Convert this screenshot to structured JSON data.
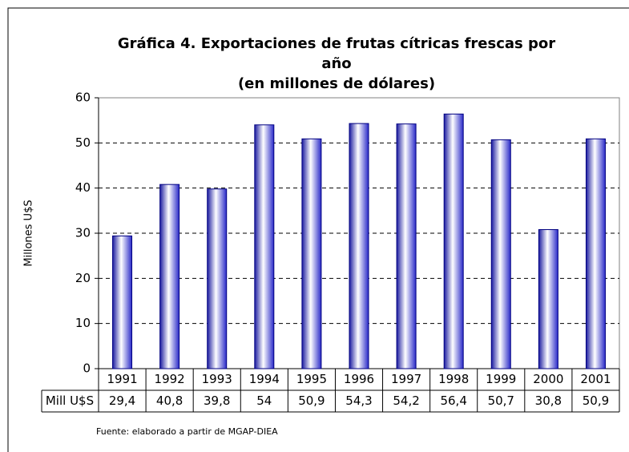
{
  "chart_data": {
    "type": "bar",
    "title": [
      "Gráfica 4. Exportaciones de frutas cítricas frescas por",
      "año",
      "(en millones de dólares)"
    ],
    "ylabel": "Millones U$S",
    "categories": [
      "1991",
      "1992",
      "1993",
      "1994",
      "1995",
      "1996",
      "1997",
      "1998",
      "1999",
      "2000",
      "2001"
    ],
    "series": [
      {
        "name": "Mill U$S",
        "color": "#000080",
        "values": [
          29.4,
          40.8,
          39.8,
          54,
          50.9,
          54.3,
          54.2,
          56.4,
          50.7,
          30.8,
          50.9
        ],
        "value_labels": [
          "29,4",
          "40,8",
          "39,8",
          "54",
          "50,9",
          "54,3",
          "54,2",
          "56,4",
          "50,7",
          "30,8",
          "50,9"
        ]
      }
    ],
    "ylim": [
      0,
      60
    ],
    "yticks": [
      0,
      10,
      20,
      30,
      40,
      50,
      60
    ],
    "grid": true,
    "source": "Fuente: elaborado a partir de MGAP-DIEA"
  }
}
